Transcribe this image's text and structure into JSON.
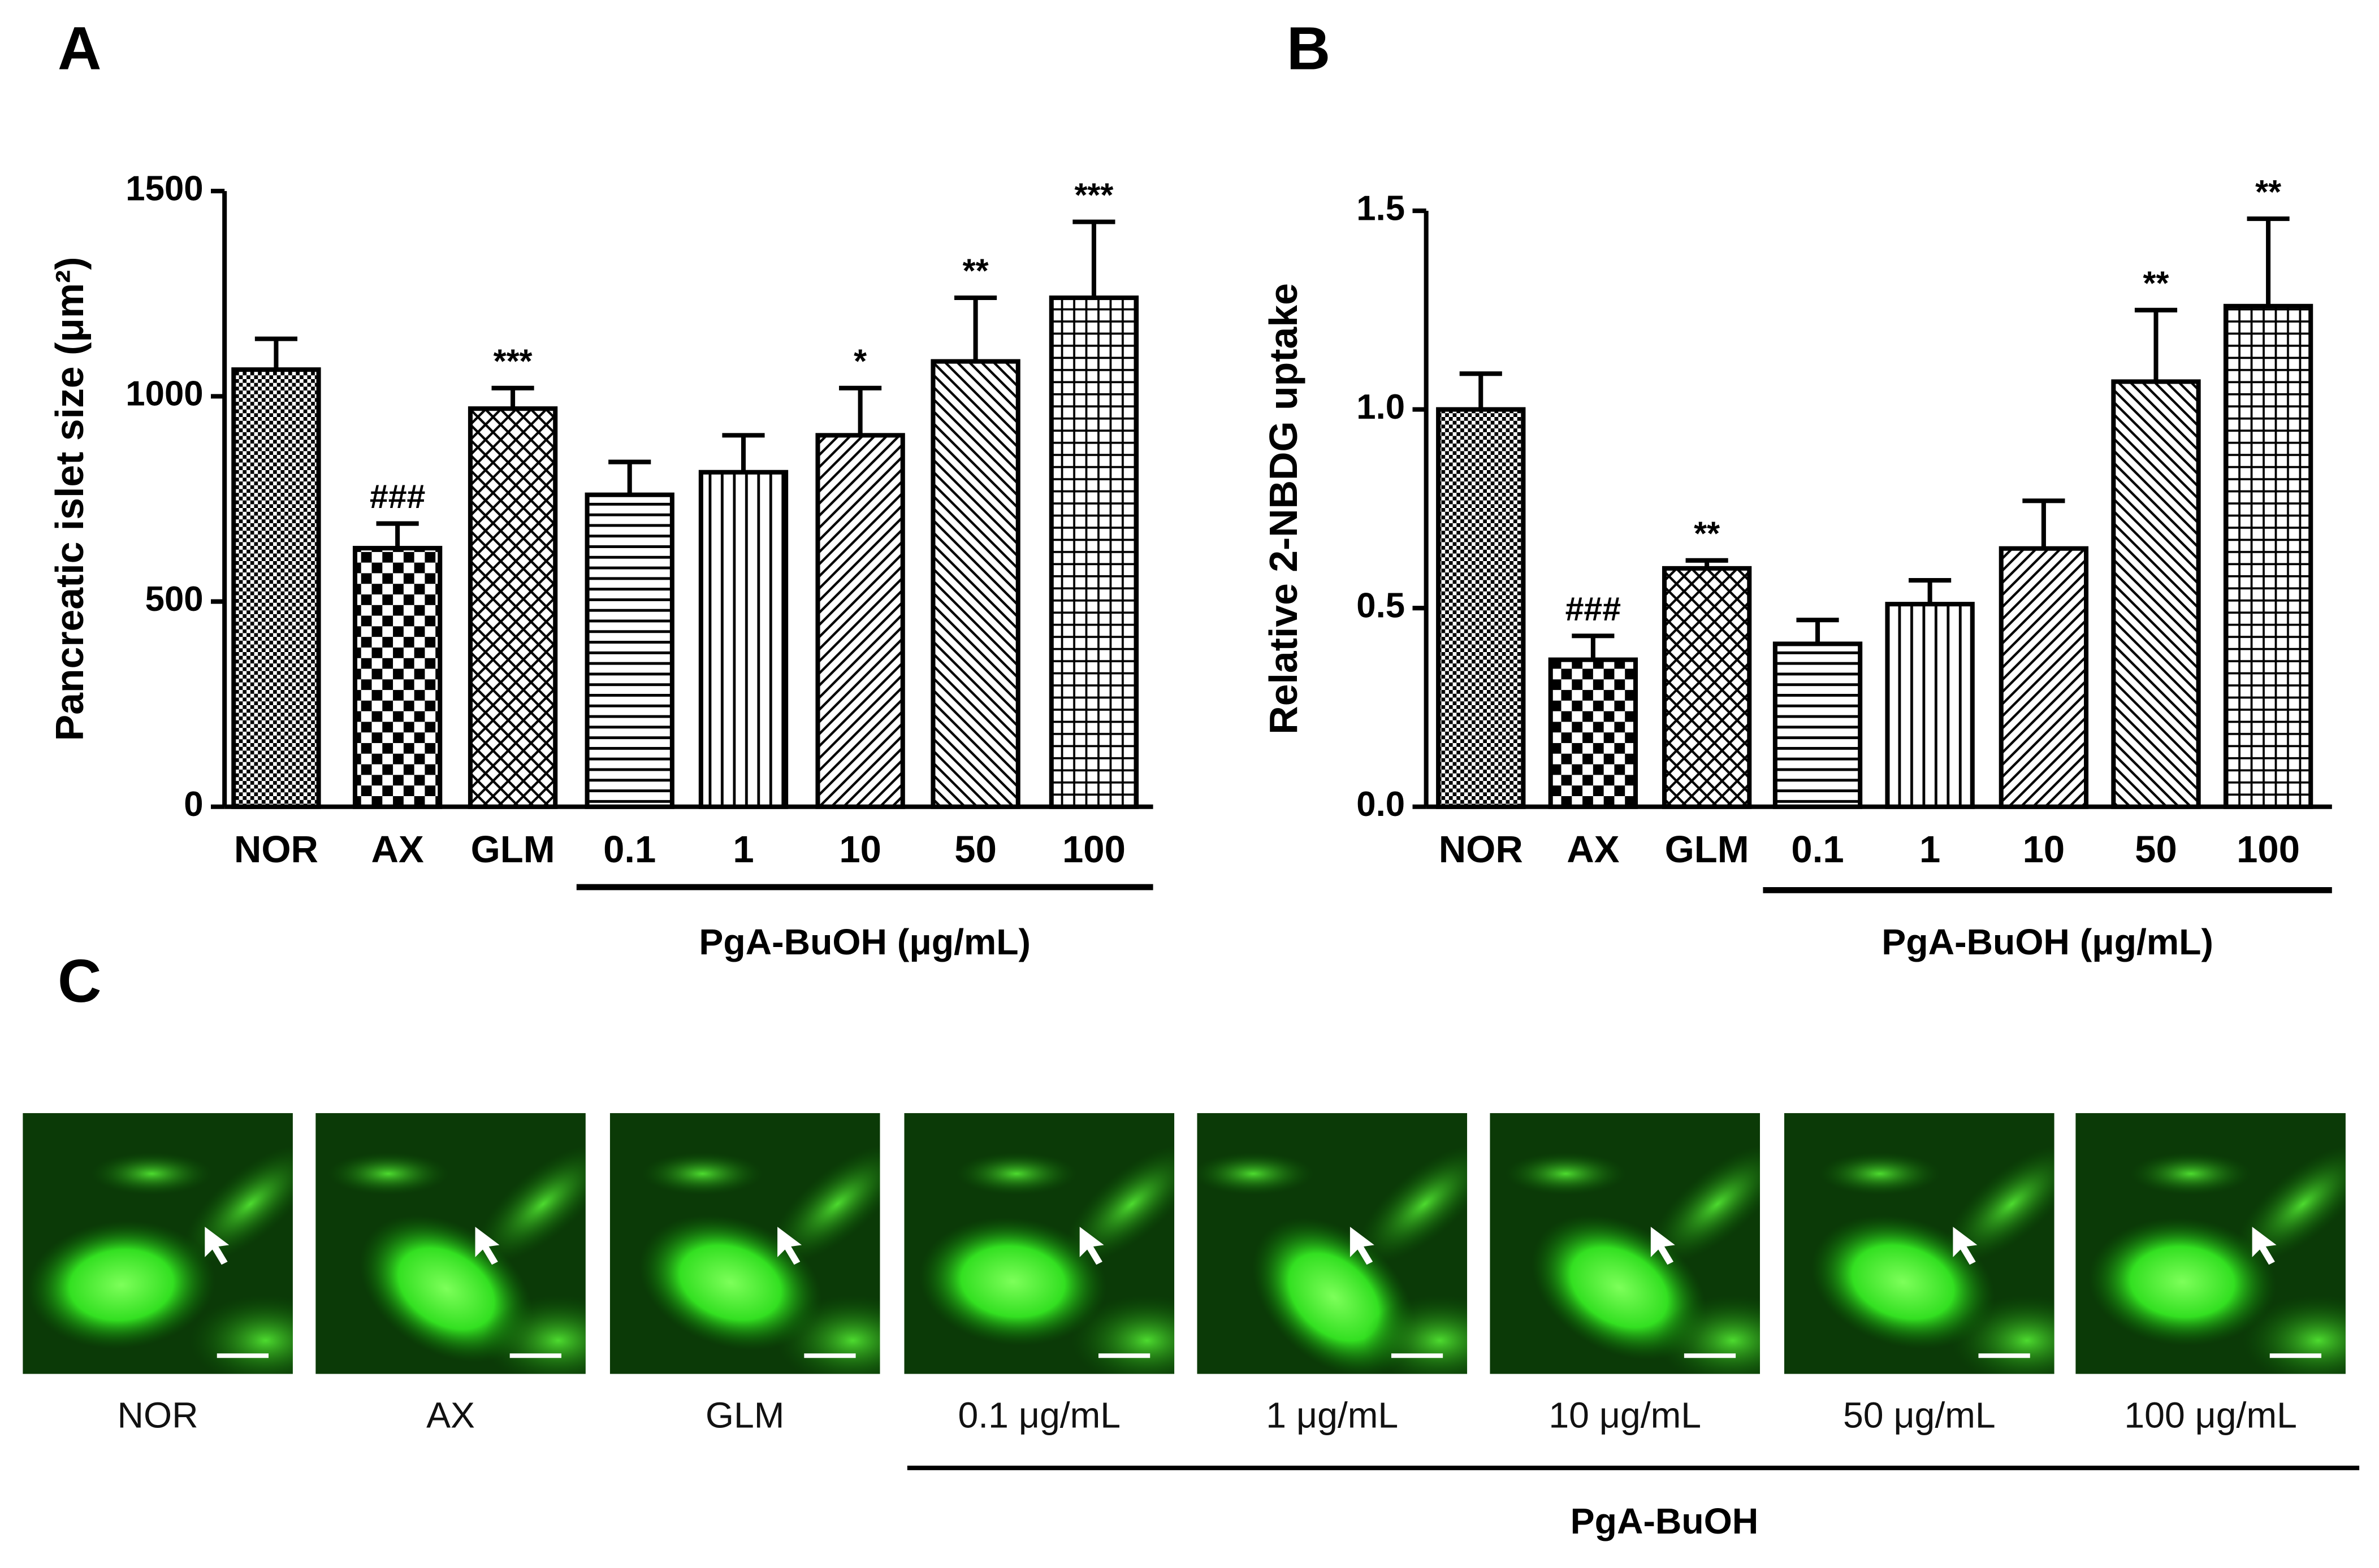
{
  "chart_data": [
    {
      "type": "bar",
      "panel": "A",
      "y_label": "Pancreatic islet size (μm²)",
      "group_label": "PgA-BuOH (μg/mL)",
      "categories": [
        "NOR",
        "AX",
        "GLM",
        "0.1",
        "1",
        "10",
        "50",
        "100"
      ],
      "values": [
        1065,
        630,
        970,
        760,
        815,
        905,
        1085,
        1240
      ],
      "errors": [
        75,
        60,
        50,
        80,
        90,
        115,
        155,
        185
      ],
      "annotations": [
        null,
        "###",
        "***",
        null,
        null,
        "*",
        "**",
        "***"
      ],
      "ylim": [
        0,
        1500
      ],
      "yticks": [
        0,
        500,
        1000,
        1500
      ],
      "color": "#000000"
    },
    {
      "type": "bar",
      "panel": "B",
      "y_label": "Relative 2-NBDG uptake",
      "group_label": "PgA-BuOH (μg/mL)",
      "categories": [
        "NOR",
        "AX",
        "GLM",
        "0.1",
        "1",
        "10",
        "50",
        "100"
      ],
      "values": [
        1.0,
        0.37,
        0.6,
        0.41,
        0.51,
        0.65,
        1.07,
        1.26
      ],
      "errors": [
        0.09,
        0.06,
        0.02,
        0.06,
        0.06,
        0.12,
        0.18,
        0.22
      ],
      "annotations": [
        null,
        "###",
        "**",
        null,
        null,
        null,
        "**",
        "**"
      ],
      "ylim": [
        0,
        1.5
      ],
      "yticks": [
        {
          "value": 0,
          "label": "0.0"
        },
        0.5,
        {
          "value": 1,
          "label": "1.0"
        },
        1.5
      ],
      "color": "#000000"
    }
  ],
  "panel_c": {
    "panel": "C",
    "group_label": "PgA-BuOH",
    "images": [
      "NOR",
      "AX",
      "GLM",
      "0.1 μg/mL",
      "1 μg/mL",
      "10 μg/mL",
      "50 μg/mL",
      "100 μg/mL"
    ]
  }
}
